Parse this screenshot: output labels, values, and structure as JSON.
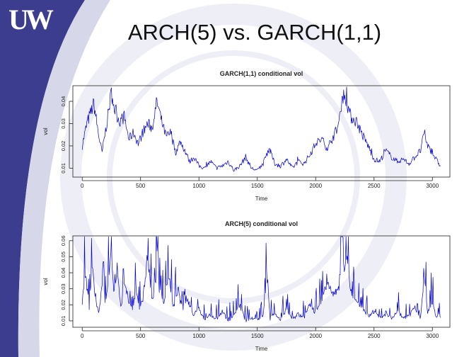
{
  "slide": {
    "title": "ARCH(5) vs. GARCH(1,1)",
    "logo_text": "UW",
    "colors": {
      "sidebar": "#3d3d8f",
      "sidebar_light": "#d6d8ea",
      "series": "#0000cc"
    }
  },
  "chart_data": [
    {
      "type": "line",
      "title": "GARCH(1,1) conditional vol",
      "xlabel": "Time",
      "ylabel": "vol",
      "xlim": [
        -80,
        3150
      ],
      "ylim": [
        0.006,
        0.047
      ],
      "xticks": [
        0,
        500,
        1000,
        1500,
        2000,
        2500,
        3000
      ],
      "yticks": [
        0.01,
        0.02,
        0.03,
        0.04
      ],
      "grid": false,
      "series": [
        {
          "color": "#0000cc",
          "x": [
            0,
            40,
            80,
            100,
            140,
            170,
            210,
            250,
            280,
            320,
            360,
            400,
            440,
            480,
            520,
            560,
            600,
            640,
            680,
            720,
            760,
            800,
            840,
            880,
            920,
            960,
            1000,
            1050,
            1100,
            1150,
            1200,
            1250,
            1300,
            1350,
            1400,
            1450,
            1500,
            1550,
            1600,
            1650,
            1700,
            1750,
            1800,
            1850,
            1900,
            1950,
            2000,
            2050,
            2100,
            2150,
            2200,
            2230,
            2260,
            2300,
            2350,
            2400,
            2450,
            2500,
            2550,
            2600,
            2650,
            2700,
            2750,
            2800,
            2850,
            2900,
            2930,
            2960,
            3000,
            3030,
            3070
          ],
          "y": [
            0.02,
            0.03,
            0.036,
            0.039,
            0.025,
            0.017,
            0.03,
            0.044,
            0.036,
            0.031,
            0.033,
            0.023,
            0.026,
            0.021,
            0.026,
            0.03,
            0.028,
            0.04,
            0.031,
            0.024,
            0.026,
            0.017,
            0.022,
            0.018,
            0.013,
            0.015,
            0.011,
            0.01,
            0.013,
            0.01,
            0.011,
            0.013,
            0.009,
            0.011,
            0.015,
            0.01,
            0.009,
            0.012,
            0.019,
            0.012,
            0.011,
            0.014,
            0.01,
            0.013,
            0.012,
            0.016,
            0.021,
            0.023,
            0.019,
            0.024,
            0.03,
            0.043,
            0.041,
            0.033,
            0.031,
            0.025,
            0.02,
            0.014,
            0.013,
            0.018,
            0.015,
            0.013,
            0.014,
            0.012,
            0.015,
            0.018,
            0.026,
            0.02,
            0.017,
            0.014,
            0.011
          ]
        }
      ]
    },
    {
      "type": "line",
      "title": "ARCH(5) conditional vol",
      "xlabel": "Time",
      "ylabel": "vol",
      "xlim": [
        -80,
        3150
      ],
      "ylim": [
        0.006,
        0.063
      ],
      "xticks": [
        0,
        500,
        1000,
        1500,
        2000,
        2500,
        3000
      ],
      "yticks": [
        0.01,
        0.02,
        0.03,
        0.04,
        0.05,
        0.06
      ],
      "grid": false,
      "series": [
        {
          "color": "#0000cc",
          "x": [
            0,
            30,
            60,
            90,
            110,
            140,
            170,
            200,
            230,
            250,
            270,
            300,
            330,
            360,
            400,
            430,
            460,
            490,
            520,
            560,
            600,
            630,
            645,
            660,
            700,
            740,
            780,
            820,
            860,
            900,
            950,
            1000,
            1050,
            1100,
            1150,
            1200,
            1250,
            1300,
            1350,
            1400,
            1450,
            1500,
            1550,
            1580,
            1610,
            1650,
            1700,
            1750,
            1800,
            1850,
            1900,
            1950,
            2000,
            2050,
            2100,
            2150,
            2200,
            2220,
            2240,
            2270,
            2300,
            2350,
            2400,
            2450,
            2500,
            2550,
            2600,
            2650,
            2700,
            2750,
            2800,
            2850,
            2900,
            2930,
            2960,
            3000,
            3030,
            3070
          ],
          "y": [
            0.022,
            0.038,
            0.018,
            0.045,
            0.025,
            0.015,
            0.03,
            0.02,
            0.04,
            0.056,
            0.03,
            0.042,
            0.018,
            0.033,
            0.022,
            0.016,
            0.03,
            0.018,
            0.024,
            0.05,
            0.022,
            0.036,
            0.062,
            0.03,
            0.022,
            0.04,
            0.018,
            0.03,
            0.015,
            0.024,
            0.013,
            0.018,
            0.01,
            0.014,
            0.011,
            0.016,
            0.01,
            0.013,
            0.02,
            0.01,
            0.012,
            0.01,
            0.013,
            0.037,
            0.011,
            0.015,
            0.01,
            0.018,
            0.011,
            0.014,
            0.012,
            0.02,
            0.015,
            0.022,
            0.034,
            0.026,
            0.03,
            0.054,
            0.044,
            0.048,
            0.028,
            0.022,
            0.018,
            0.013,
            0.016,
            0.012,
            0.014,
            0.011,
            0.016,
            0.012,
            0.013,
            0.018,
            0.012,
            0.037,
            0.015,
            0.022,
            0.013,
            0.012
          ]
        }
      ]
    }
  ]
}
